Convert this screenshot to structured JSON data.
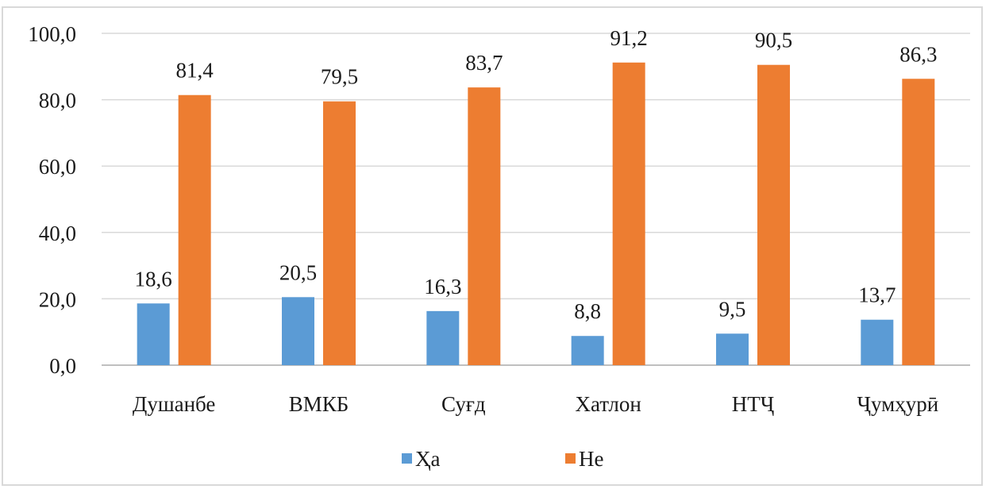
{
  "chart_data": {
    "type": "bar",
    "categories": [
      "Душанбе",
      "ВМКБ",
      "Суғд",
      "Хатлон",
      "НТҶ",
      "Ҷумҳурӣ"
    ],
    "series": [
      {
        "name": "Ҳа",
        "values": [
          18.6,
          20.5,
          16.3,
          8.8,
          9.5,
          13.7
        ],
        "labels": [
          "18,6",
          "20,5",
          "16,3",
          "8,8",
          "9,5",
          "13,7"
        ],
        "color": "#5b9bd5"
      },
      {
        "name": "Не",
        "values": [
          81.4,
          79.5,
          83.7,
          91.2,
          90.5,
          86.3
        ],
        "labels": [
          "81,4",
          "79,5",
          "83,7",
          "91,2",
          "90,5",
          "86,3"
        ],
        "color": "#ed7d31"
      }
    ],
    "yticks": [
      "0,0",
      "20,0",
      "40,0",
      "60,0",
      "80,0",
      "100,0"
    ],
    "ylim": [
      0,
      100
    ],
    "grid": true,
    "legend": "bottom",
    "gridline_color": "#d9d9d9"
  }
}
